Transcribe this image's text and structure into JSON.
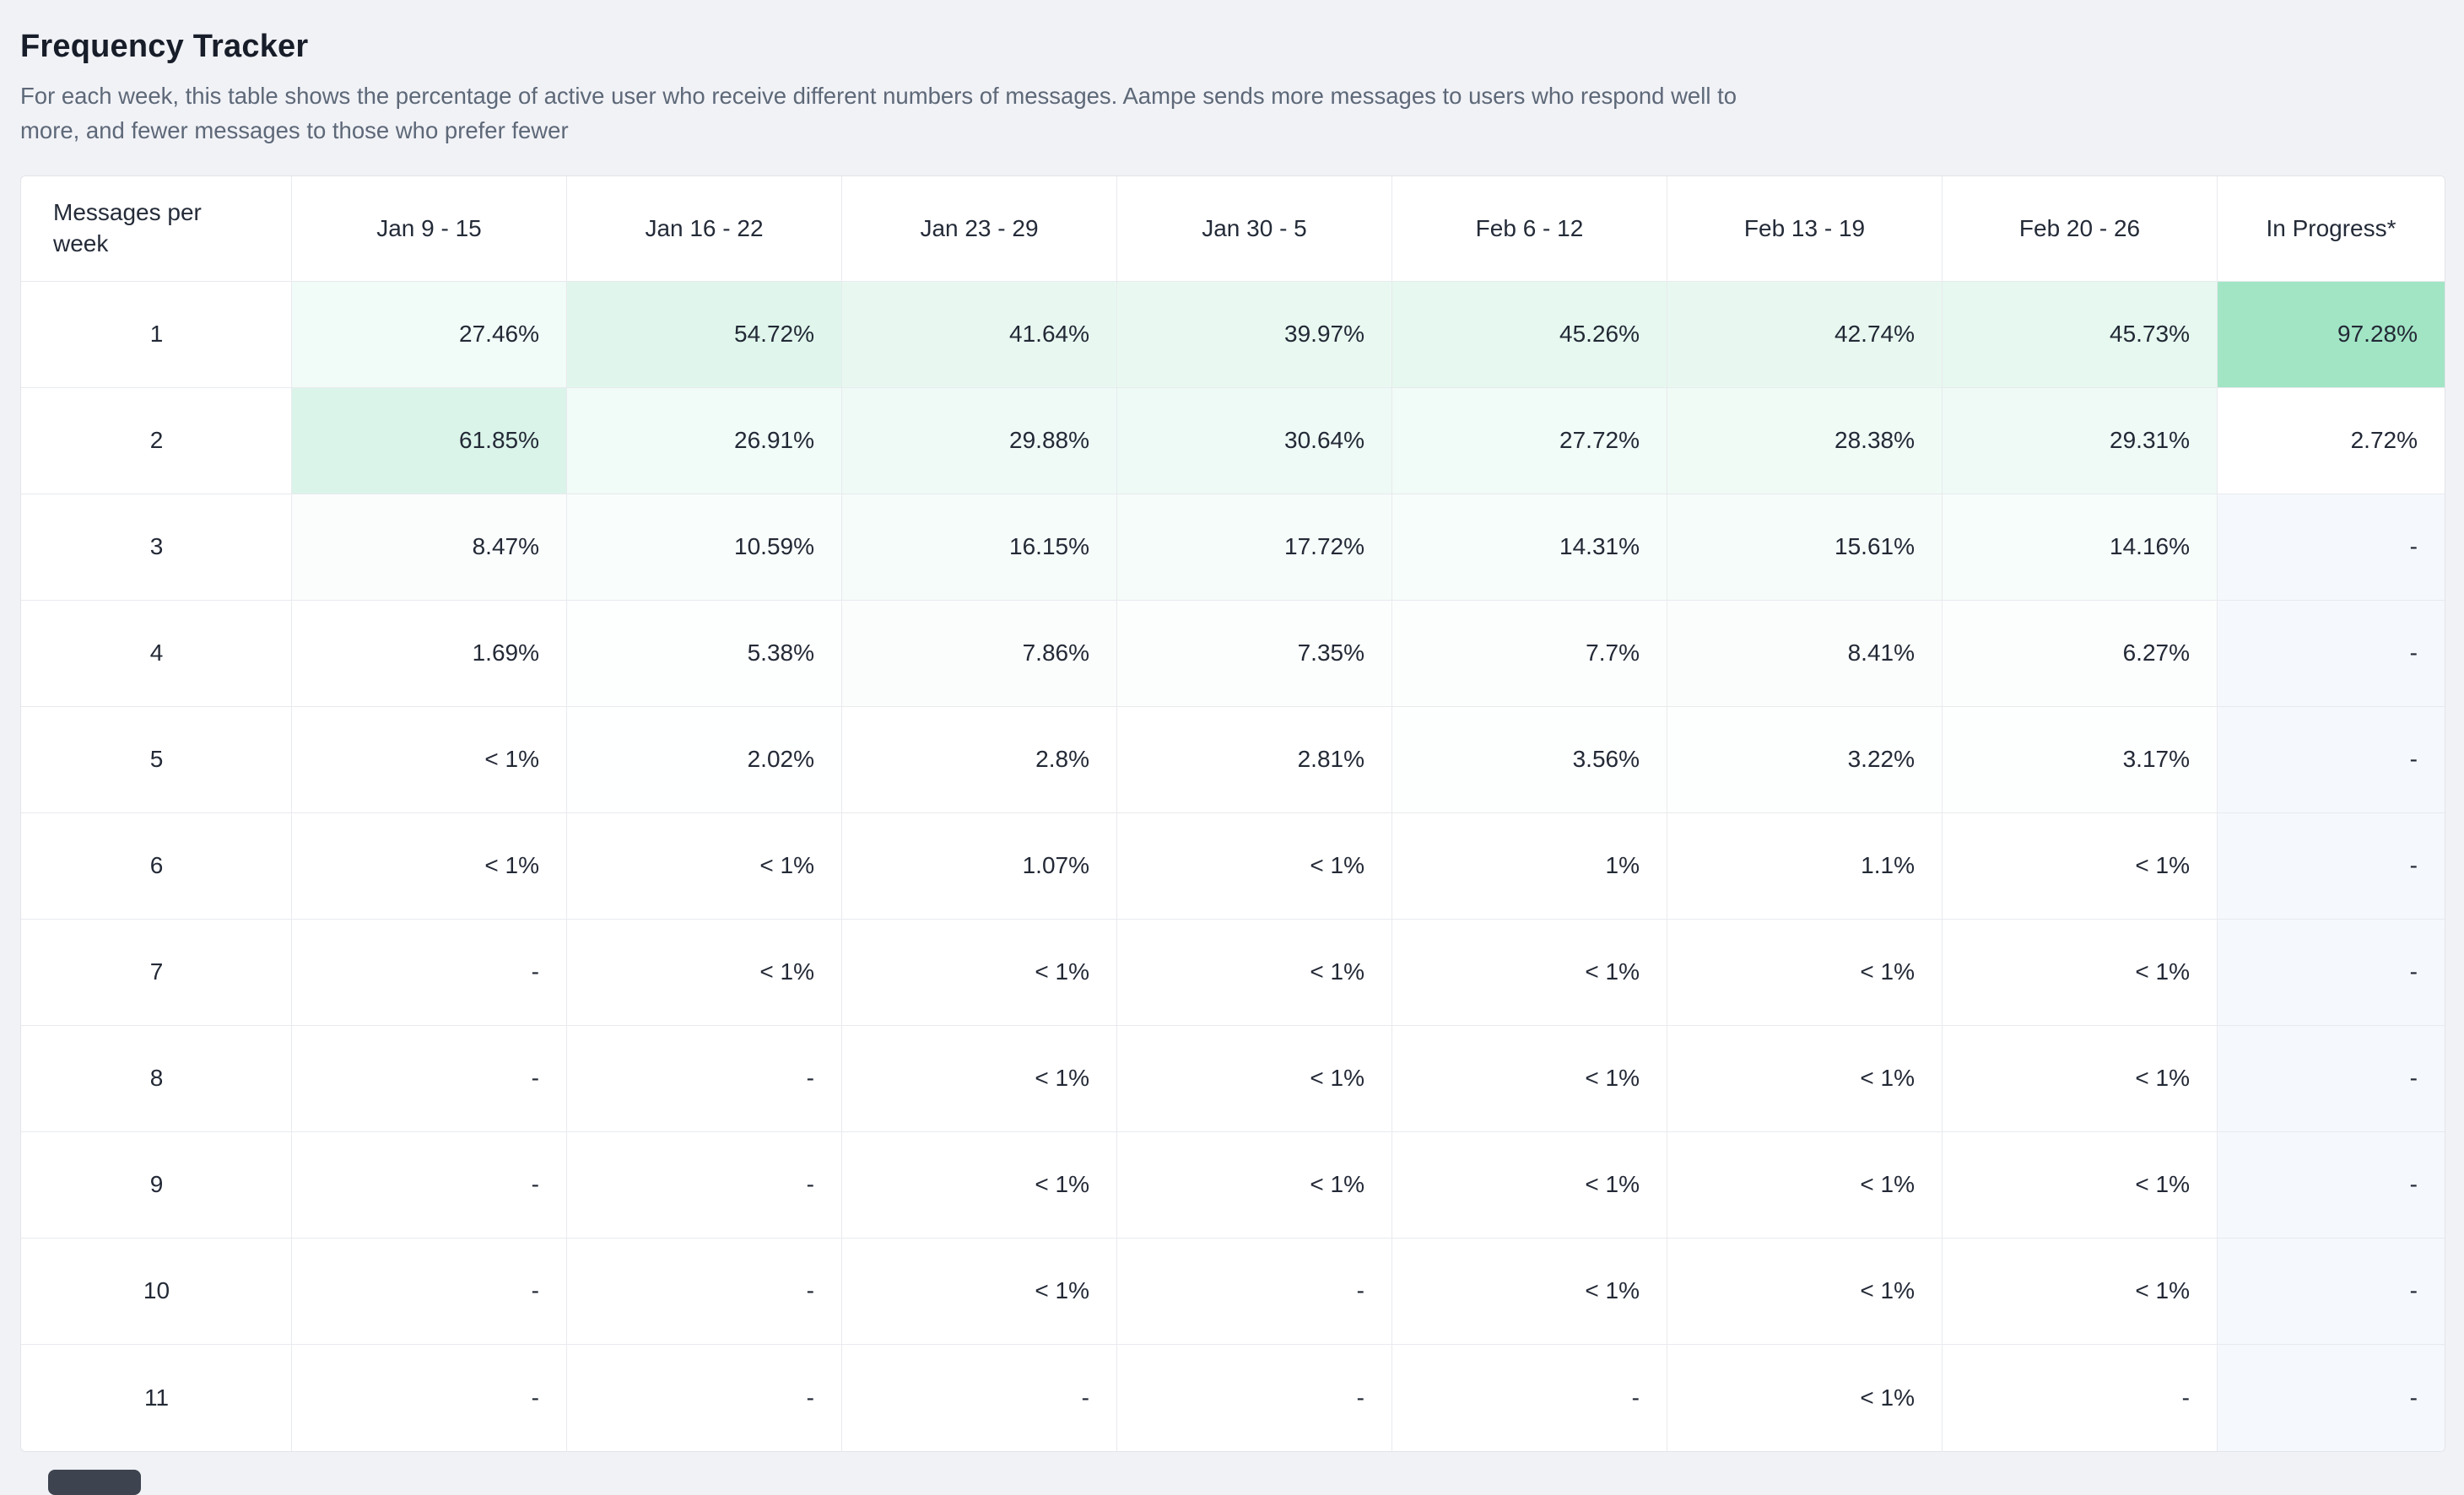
{
  "page": {
    "title": "Frequency Tracker",
    "description": [
      "For each week, this table shows the percentage of active user who receive different numbers of messages. Aampe sends more messages to users who respond well to",
      "more, and fewer messages to those who prefer fewer"
    ]
  },
  "colors": {
    "page_bg": "#f1f2f6",
    "heat_max": "#a2e5c5",
    "in_progress_bg": "#f5f8fd",
    "scrollbar": "#3d4450"
  },
  "table": {
    "row_header": "Messages per week",
    "columns": [
      "Jan 9 - 15",
      "Jan 16 - 22",
      "Jan 23 - 29",
      "Jan 30 - 5",
      "Feb 6 - 12",
      "Feb 13 - 19",
      "Feb 20 - 26",
      "In Progress*"
    ],
    "rows": [
      {
        "label": "1",
        "cells": [
          {
            "v": "27.46%",
            "bg": "#f1fbf7"
          },
          {
            "v": "54.72%",
            "bg": "#e0f6ec"
          },
          {
            "v": "41.64%",
            "bg": "#e8f8f1"
          },
          {
            "v": "39.97%",
            "bg": "#e9f9f1"
          },
          {
            "v": "45.26%",
            "bg": "#e6f8ef"
          },
          {
            "v": "42.74%",
            "bg": "#e8f8f0"
          },
          {
            "v": "45.73%",
            "bg": "#e6f8ef"
          },
          {
            "v": "97.28%",
            "bg": "#a2e5c5"
          }
        ]
      },
      {
        "label": "2",
        "cells": [
          {
            "v": "61.85%",
            "bg": "#dbf4e9"
          },
          {
            "v": "26.91%",
            "bg": "#f1fbf7"
          },
          {
            "v": "29.88%",
            "bg": "#effaf6"
          },
          {
            "v": "30.64%",
            "bg": "#eefaf5"
          },
          {
            "v": "27.72%",
            "bg": "#f1fbf7"
          },
          {
            "v": "28.38%",
            "bg": "#f0fbf6"
          },
          {
            "v": "29.31%",
            "bg": "#effaf6"
          },
          {
            "v": "2.72%",
            "bg": "#ffffff"
          }
        ]
      },
      {
        "label": "3",
        "cells": [
          {
            "v": "8.47%",
            "bg": "#fbfdfc"
          },
          {
            "v": "10.59%",
            "bg": "#f9fdfb"
          },
          {
            "v": "16.15%",
            "bg": "#f6fcf9"
          },
          {
            "v": "17.72%",
            "bg": "#f5fcf9"
          },
          {
            "v": "14.31%",
            "bg": "#f7fdfa"
          },
          {
            "v": "15.61%",
            "bg": "#f6fcf9"
          },
          {
            "v": "14.16%",
            "bg": "#f7fdfa"
          },
          {
            "v": "-",
            "bg": "#f5f8fd"
          }
        ]
      },
      {
        "label": "4",
        "cells": [
          {
            "v": "1.69%",
            "bg": "#ffffff"
          },
          {
            "v": "5.38%",
            "bg": "#fdfefe"
          },
          {
            "v": "7.86%",
            "bg": "#fbfdfc"
          },
          {
            "v": "7.35%",
            "bg": "#fcfefd"
          },
          {
            "v": "7.7%",
            "bg": "#fcfefd"
          },
          {
            "v": "8.41%",
            "bg": "#fbfdfc"
          },
          {
            "v": "6.27%",
            "bg": "#fcfefd"
          },
          {
            "v": "-",
            "bg": "#f5f8fd"
          }
        ]
      },
      {
        "label": "5",
        "cells": [
          {
            "v": "< 1%",
            "bg": "#ffffff"
          },
          {
            "v": "2.02%",
            "bg": "#feffff"
          },
          {
            "v": "2.8%",
            "bg": "#fefffe"
          },
          {
            "v": "2.81%",
            "bg": "#fefffe"
          },
          {
            "v": "3.56%",
            "bg": "#fdfefe"
          },
          {
            "v": "3.22%",
            "bg": "#fdfefe"
          },
          {
            "v": "3.17%",
            "bg": "#fdfefe"
          },
          {
            "v": "-",
            "bg": "#f5f8fd"
          }
        ]
      },
      {
        "label": "6",
        "cells": [
          {
            "v": "< 1%",
            "bg": "#ffffff"
          },
          {
            "v": "< 1%",
            "bg": "#ffffff"
          },
          {
            "v": "1.07%",
            "bg": "#ffffff"
          },
          {
            "v": "< 1%",
            "bg": "#ffffff"
          },
          {
            "v": "1%",
            "bg": "#ffffff"
          },
          {
            "v": "1.1%",
            "bg": "#ffffff"
          },
          {
            "v": "< 1%",
            "bg": "#ffffff"
          },
          {
            "v": "-",
            "bg": "#f5f8fd"
          }
        ]
      },
      {
        "label": "7",
        "cells": [
          {
            "v": "-",
            "bg": "#ffffff"
          },
          {
            "v": "< 1%",
            "bg": "#ffffff"
          },
          {
            "v": "< 1%",
            "bg": "#ffffff"
          },
          {
            "v": "< 1%",
            "bg": "#ffffff"
          },
          {
            "v": "< 1%",
            "bg": "#ffffff"
          },
          {
            "v": "< 1%",
            "bg": "#ffffff"
          },
          {
            "v": "< 1%",
            "bg": "#ffffff"
          },
          {
            "v": "-",
            "bg": "#f5f8fd"
          }
        ]
      },
      {
        "label": "8",
        "cells": [
          {
            "v": "-",
            "bg": "#ffffff"
          },
          {
            "v": "-",
            "bg": "#ffffff"
          },
          {
            "v": "< 1%",
            "bg": "#ffffff"
          },
          {
            "v": "< 1%",
            "bg": "#ffffff"
          },
          {
            "v": "< 1%",
            "bg": "#ffffff"
          },
          {
            "v": "< 1%",
            "bg": "#ffffff"
          },
          {
            "v": "< 1%",
            "bg": "#ffffff"
          },
          {
            "v": "-",
            "bg": "#f5f8fd"
          }
        ]
      },
      {
        "label": "9",
        "cells": [
          {
            "v": "-",
            "bg": "#ffffff"
          },
          {
            "v": "-",
            "bg": "#ffffff"
          },
          {
            "v": "< 1%",
            "bg": "#ffffff"
          },
          {
            "v": "< 1%",
            "bg": "#ffffff"
          },
          {
            "v": "< 1%",
            "bg": "#ffffff"
          },
          {
            "v": "< 1%",
            "bg": "#ffffff"
          },
          {
            "v": "< 1%",
            "bg": "#ffffff"
          },
          {
            "v": "-",
            "bg": "#f5f8fd"
          }
        ]
      },
      {
        "label": "10",
        "cells": [
          {
            "v": "-",
            "bg": "#ffffff"
          },
          {
            "v": "-",
            "bg": "#ffffff"
          },
          {
            "v": "< 1%",
            "bg": "#ffffff"
          },
          {
            "v": "-",
            "bg": "#ffffff"
          },
          {
            "v": "< 1%",
            "bg": "#ffffff"
          },
          {
            "v": "< 1%",
            "bg": "#ffffff"
          },
          {
            "v": "< 1%",
            "bg": "#ffffff"
          },
          {
            "v": "-",
            "bg": "#f5f8fd"
          }
        ]
      },
      {
        "label": "11",
        "cells": [
          {
            "v": "-",
            "bg": "#ffffff"
          },
          {
            "v": "-",
            "bg": "#ffffff"
          },
          {
            "v": "-",
            "bg": "#ffffff"
          },
          {
            "v": "-",
            "bg": "#ffffff"
          },
          {
            "v": "-",
            "bg": "#ffffff"
          },
          {
            "v": "< 1%",
            "bg": "#ffffff"
          },
          {
            "v": "-",
            "bg": "#ffffff"
          },
          {
            "v": "-",
            "bg": "#f5f8fd"
          }
        ]
      }
    ]
  },
  "chart_data": {
    "type": "heatmap",
    "title": "Frequency Tracker",
    "x_categories": [
      "Jan 9 - 15",
      "Jan 16 - 22",
      "Jan 23 - 29",
      "Jan 30 - 5",
      "Feb 6 - 12",
      "Feb 13 - 19",
      "Feb 20 - 26",
      "In Progress*"
    ],
    "ylabel": "Messages per week",
    "y_categories": [
      "1",
      "2",
      "3",
      "4",
      "5",
      "6",
      "7",
      "8",
      "9",
      "10",
      "11"
    ],
    "values": [
      [
        "27.46%",
        "54.72%",
        "41.64%",
        "39.97%",
        "45.26%",
        "42.74%",
        "45.73%",
        "97.28%"
      ],
      [
        "61.85%",
        "26.91%",
        "29.88%",
        "30.64%",
        "27.72%",
        "28.38%",
        "29.31%",
        "2.72%"
      ],
      [
        "8.47%",
        "10.59%",
        "16.15%",
        "17.72%",
        "14.31%",
        "15.61%",
        "14.16%",
        "-"
      ],
      [
        "1.69%",
        "5.38%",
        "7.86%",
        "7.35%",
        "7.7%",
        "8.41%",
        "6.27%",
        "-"
      ],
      [
        "< 1%",
        "2.02%",
        "2.8%",
        "2.81%",
        "3.56%",
        "3.22%",
        "3.17%",
        "-"
      ],
      [
        "< 1%",
        "< 1%",
        "1.07%",
        "< 1%",
        "1%",
        "1.1%",
        "< 1%",
        "-"
      ],
      [
        "-",
        "< 1%",
        "< 1%",
        "< 1%",
        "< 1%",
        "< 1%",
        "< 1%",
        "-"
      ],
      [
        "-",
        "-",
        "< 1%",
        "< 1%",
        "< 1%",
        "< 1%",
        "< 1%",
        "-"
      ],
      [
        "-",
        "-",
        "< 1%",
        "< 1%",
        "< 1%",
        "< 1%",
        "< 1%",
        "-"
      ],
      [
        "-",
        "-",
        "< 1%",
        "-",
        "< 1%",
        "< 1%",
        "< 1%",
        "-"
      ],
      [
        "-",
        "-",
        "-",
        "-",
        "-",
        "< 1%",
        "-",
        "-"
      ]
    ]
  }
}
